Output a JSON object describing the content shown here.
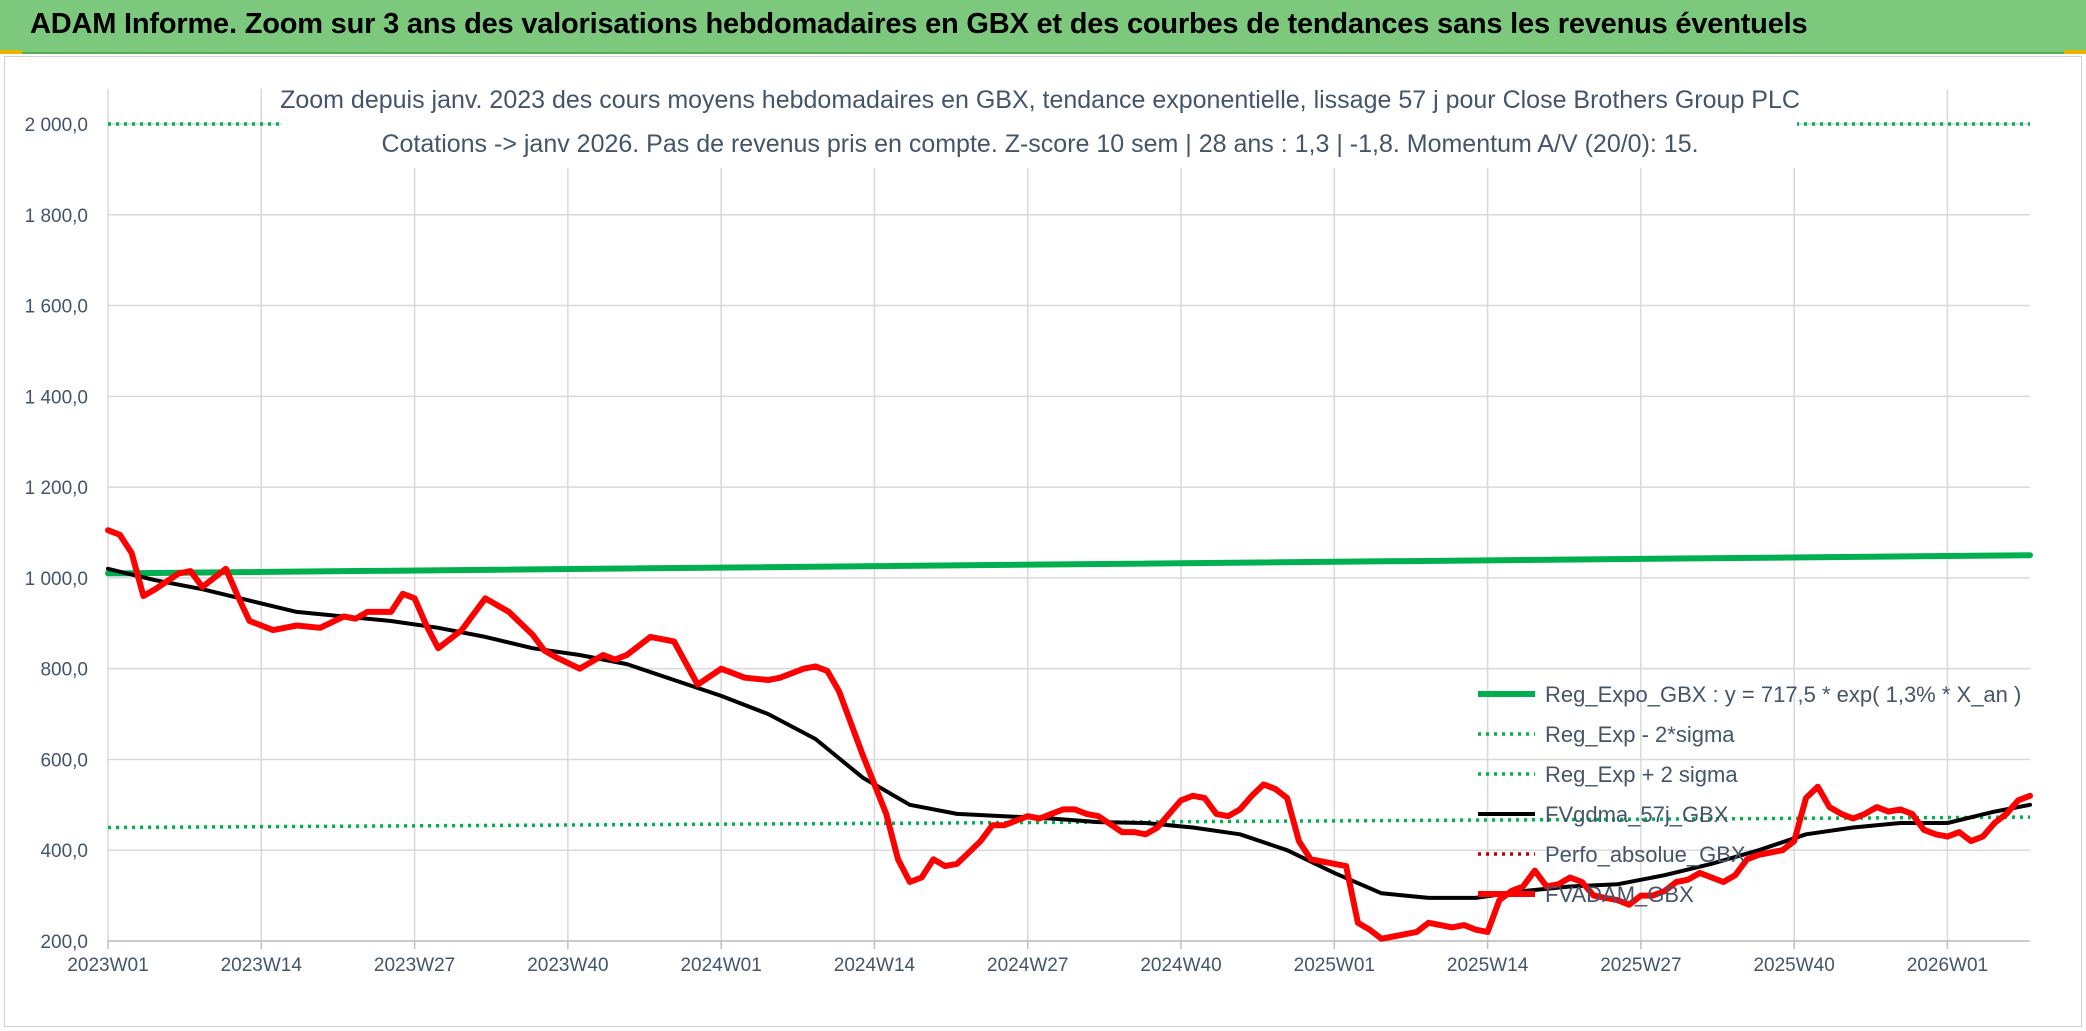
{
  "banner": {
    "title": "ADAM Informe. Zoom sur 3 ans des valorisations hebdomadaires en GBX et des courbes de tendances sans les revenus éventuels"
  },
  "colors": {
    "regression": "#00b050",
    "sigma": "#00b050",
    "fvgdma": "#000000",
    "perfo": "#c00000",
    "fvadam": "#ff0000",
    "banner": "#7cc87c",
    "text": "#44546a",
    "grid": "#d9d9d9"
  },
  "chart_data": {
    "type": "line",
    "title": "Zoom depuis janv. 2023 des cours moyens hebdomadaires en GBX, tendance exponentielle, lissage 57 j pour Close Brothers Group PLC",
    "subtitle": "Cotations -> janv 2026. Pas de revenus pris en compte. Z-score 10 sem | 28 ans : 1,3 | -1,8. Momentum A/V (20/0): 15.",
    "xlabel": "",
    "ylabel": "",
    "ylim": [
      200,
      2000
    ],
    "y_ticks": [
      "2 000,0",
      "1 800,0",
      "1 600,0",
      "1 400,0",
      "1 200,0",
      "1 000,0",
      "800,0",
      "600,0",
      "400,0",
      "200,0"
    ],
    "x_ticks": [
      "2023W01",
      "2023W14",
      "2023W27",
      "2023W40",
      "2024W01",
      "2024W14",
      "2024W27",
      "2024W40",
      "2025W01",
      "2025W14",
      "2025W27",
      "2025W40",
      "2026W01"
    ],
    "x_count": 164,
    "grid": "on",
    "legend_position": "right",
    "series": [
      {
        "name": "Reg_Expo_GBX : y = 717,5 * exp( 1,3% *  X_an )",
        "style": "solid-thick",
        "color": "#00b050",
        "x": [
          0,
          163
        ],
        "values": [
          1010,
          1050
        ]
      },
      {
        "name": "Reg_Exp - 2*sigma",
        "style": "dotted",
        "color": "#00b050",
        "x": [
          0,
          163
        ],
        "values": [
          450,
          473
        ]
      },
      {
        "name": "Reg_Exp + 2 sigma",
        "style": "dotted",
        "color": "#00b050",
        "x": [
          0,
          163
        ],
        "values": [
          2000,
          2000
        ]
      },
      {
        "name": "FVgdma_57j_GBX",
        "style": "solid",
        "color": "#000000",
        "x": [
          0,
          4,
          8,
          12,
          16,
          20,
          24,
          28,
          32,
          36,
          40,
          44,
          48,
          52,
          56,
          60,
          64,
          68,
          72,
          76,
          80,
          84,
          88,
          92,
          96,
          100,
          104,
          108,
          112,
          116,
          120,
          124,
          128,
          132,
          136,
          140,
          144,
          148,
          152,
          156,
          160,
          163
        ],
        "values": [
          1020,
          995,
          975,
          950,
          925,
          915,
          905,
          890,
          870,
          845,
          830,
          810,
          775,
          740,
          700,
          645,
          560,
          500,
          480,
          475,
          470,
          462,
          460,
          450,
          435,
          400,
          350,
          305,
          295,
          295,
          310,
          320,
          325,
          345,
          370,
          400,
          435,
          450,
          460,
          460,
          485,
          500
        ]
      },
      {
        "name": "Perfo_absolue_GBX",
        "style": "dotted",
        "color": "#c00000",
        "x": [],
        "values": []
      },
      {
        "name": "FVADAM_GBX",
        "style": "solid-thick",
        "color": "#ff0000",
        "x": [
          0,
          1,
          2,
          3,
          4,
          6,
          7,
          8,
          9,
          10,
          11,
          12,
          13,
          14,
          16,
          18,
          20,
          21,
          22,
          24,
          25,
          26,
          27,
          28,
          30,
          32,
          34,
          36,
          37,
          38,
          40,
          42,
          43,
          44,
          45,
          46,
          48,
          50,
          52,
          54,
          56,
          57,
          58,
          59,
          60,
          61,
          62,
          64,
          66,
          67,
          68,
          69,
          70,
          71,
          72,
          73,
          74,
          75,
          76,
          77,
          78,
          79,
          80,
          81,
          82,
          83,
          84,
          86,
          87,
          88,
          89,
          90,
          91,
          92,
          93,
          94,
          95,
          96,
          97,
          98,
          99,
          100,
          101,
          102,
          103,
          104,
          105,
          106,
          107,
          108,
          109,
          110,
          111,
          112,
          113,
          114,
          115,
          116,
          117,
          118,
          119,
          120,
          121,
          122,
          123,
          124,
          125,
          126,
          127,
          128,
          129,
          130,
          131,
          132,
          133,
          134,
          135,
          136,
          137,
          138,
          139,
          140,
          141,
          142,
          143,
          144,
          145,
          146,
          147,
          148,
          149,
          150,
          151,
          152,
          153,
          154,
          155,
          156,
          157,
          158,
          159,
          160,
          161,
          162,
          163
        ],
        "values": [
          1105,
          1095,
          1055,
          960,
          975,
          1010,
          1015,
          980,
          1000,
          1020,
          960,
          905,
          895,
          885,
          895,
          890,
          915,
          910,
          925,
          925,
          965,
          955,
          895,
          845,
          885,
          955,
          925,
          875,
          840,
          825,
          800,
          830,
          820,
          830,
          850,
          870,
          860,
          765,
          800,
          780,
          775,
          780,
          790,
          800,
          805,
          795,
          750,
          610,
          480,
          380,
          330,
          340,
          380,
          365,
          370,
          395,
          420,
          455,
          455,
          465,
          475,
          470,
          480,
          490,
          490,
          480,
          475,
          440,
          440,
          435,
          450,
          480,
          510,
          520,
          515,
          480,
          475,
          490,
          520,
          545,
          535,
          515,
          420,
          380,
          375,
          370,
          365,
          240,
          225,
          205,
          210,
          215,
          220,
          240,
          235,
          230,
          235,
          225,
          220,
          290,
          310,
          320,
          355,
          320,
          325,
          340,
          330,
          300,
          295,
          290,
          280,
          300,
          300,
          310,
          330,
          335,
          350,
          340,
          330,
          345,
          380,
          390,
          395,
          400,
          420,
          515,
          540,
          495,
          480,
          470,
          480,
          495,
          485,
          490,
          480,
          445,
          435,
          430,
          440,
          420,
          430,
          460,
          480,
          510,
          520
        ]
      }
    ]
  }
}
